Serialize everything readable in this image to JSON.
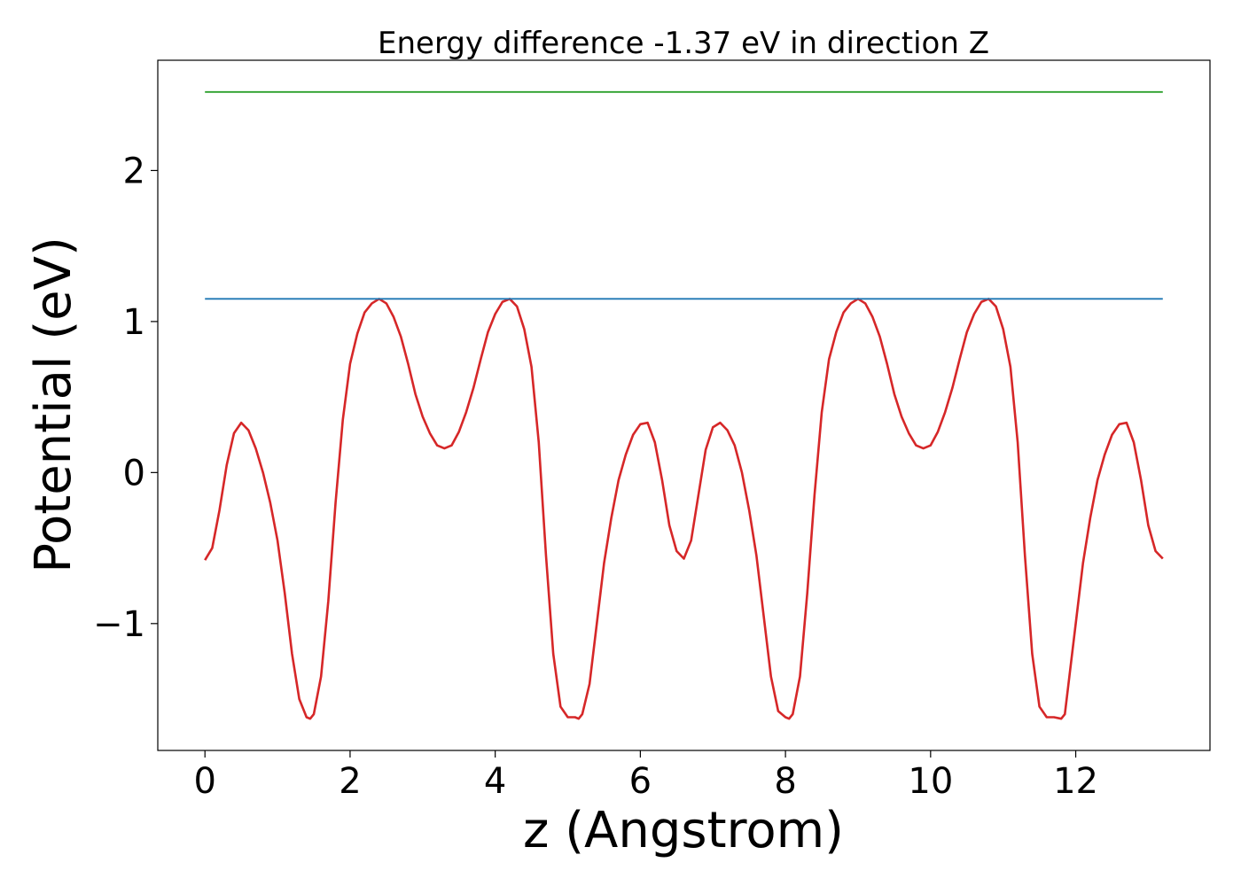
{
  "chart_data": {
    "type": "line",
    "title": "Energy difference -1.37 eV in direction Z",
    "xlabel": "z (Angstrom)",
    "ylabel": "Potential (eV)",
    "xlim": [
      -0.65,
      13.85
    ],
    "ylim": [
      -1.84,
      2.73
    ],
    "x_ticks": [
      0,
      2,
      4,
      6,
      8,
      10,
      12
    ],
    "x_tick_labels": [
      "0",
      "2",
      "4",
      "6",
      "8",
      "10",
      "12"
    ],
    "y_ticks": [
      -1,
      0,
      1,
      2
    ],
    "y_tick_labels": [
      "−1",
      "0",
      "1",
      "2"
    ],
    "grid": false,
    "legend": "none",
    "series": [
      {
        "color": "#d62728",
        "x": [
          0.0,
          0.1,
          0.2,
          0.3,
          0.4,
          0.5,
          0.6,
          0.7,
          0.8,
          0.9,
          1.0,
          1.1,
          1.2,
          1.3,
          1.4,
          1.45,
          1.5,
          1.6,
          1.7,
          1.8,
          1.9,
          2.0,
          2.1,
          2.2,
          2.3,
          2.4,
          2.5,
          2.6,
          2.7,
          2.8,
          2.9,
          3.0,
          3.1,
          3.2,
          3.3,
          3.4,
          3.5,
          3.6,
          3.7,
          3.8,
          3.9,
          4.0,
          4.1,
          4.2,
          4.3,
          4.4,
          4.5,
          4.6,
          4.7,
          4.8,
          4.9,
          5.0,
          5.1,
          5.15,
          5.2,
          5.3,
          5.4,
          5.5,
          5.6,
          5.7,
          5.8,
          5.9,
          6.0,
          6.1,
          6.2,
          6.3,
          6.4,
          6.5,
          6.6,
          6.7,
          6.8,
          6.9,
          7.0,
          7.1,
          7.2,
          7.3,
          7.4,
          7.5,
          7.6,
          7.7,
          7.8,
          7.9,
          8.0,
          8.05,
          8.1,
          8.2,
          8.3,
          8.4,
          8.5,
          8.6,
          8.7,
          8.8,
          8.9,
          9.0,
          9.1,
          9.2,
          9.3,
          9.4,
          9.5,
          9.6,
          9.7,
          9.8,
          9.9,
          10.0,
          10.1,
          10.2,
          10.3,
          10.4,
          10.5,
          10.6,
          10.7,
          10.8,
          10.9,
          11.0,
          11.1,
          11.2,
          11.3,
          11.4,
          11.5,
          11.6,
          11.7,
          11.8,
          11.85,
          11.9,
          12.0,
          12.1,
          12.2,
          12.3,
          12.4,
          12.5,
          12.6,
          12.7,
          12.8,
          12.9,
          13.0,
          13.1,
          13.2
        ],
        "y": [
          -0.58,
          -0.5,
          -0.25,
          0.05,
          0.26,
          0.33,
          0.28,
          0.16,
          0.0,
          -0.2,
          -0.45,
          -0.8,
          -1.2,
          -1.5,
          -1.62,
          -1.63,
          -1.6,
          -1.35,
          -0.85,
          -0.2,
          0.35,
          0.72,
          0.92,
          1.06,
          1.12,
          1.15,
          1.12,
          1.03,
          0.9,
          0.72,
          0.52,
          0.37,
          0.26,
          0.18,
          0.16,
          0.18,
          0.27,
          0.4,
          0.56,
          0.75,
          0.93,
          1.05,
          1.13,
          1.15,
          1.1,
          0.95,
          0.7,
          0.2,
          -0.55,
          -1.2,
          -1.55,
          -1.62,
          -1.62,
          -1.63,
          -1.6,
          -1.4,
          -1.0,
          -0.6,
          -0.3,
          -0.05,
          0.12,
          0.25,
          0.32,
          0.33,
          0.2,
          -0.05,
          -0.35,
          -0.52,
          -0.57,
          -0.45,
          -0.15,
          0.15,
          0.3,
          0.33,
          0.28,
          0.18,
          0.0,
          -0.25,
          -0.55,
          -0.95,
          -1.35,
          -1.58,
          -1.62,
          -1.63,
          -1.6,
          -1.35,
          -0.8,
          -0.15,
          0.4,
          0.75,
          0.93,
          1.06,
          1.12,
          1.15,
          1.12,
          1.03,
          0.9,
          0.72,
          0.52,
          0.37,
          0.26,
          0.18,
          0.16,
          0.18,
          0.27,
          0.4,
          0.56,
          0.75,
          0.93,
          1.05,
          1.13,
          1.15,
          1.1,
          0.95,
          0.7,
          0.2,
          -0.55,
          -1.2,
          -1.55,
          -1.62,
          -1.62,
          -1.63,
          -1.6,
          -1.4,
          -1.0,
          -0.6,
          -0.3,
          -0.05,
          0.12,
          0.25,
          0.32,
          0.33,
          0.2,
          -0.05,
          -0.35,
          -0.52,
          -0.57
        ]
      },
      {
        "color": "#1f77b4",
        "x": [
          0,
          13.2
        ],
        "y": [
          1.15,
          1.15
        ]
      },
      {
        "color": "#2ca02c",
        "x": [
          0,
          13.2
        ],
        "y": [
          2.52,
          2.52
        ]
      }
    ]
  }
}
